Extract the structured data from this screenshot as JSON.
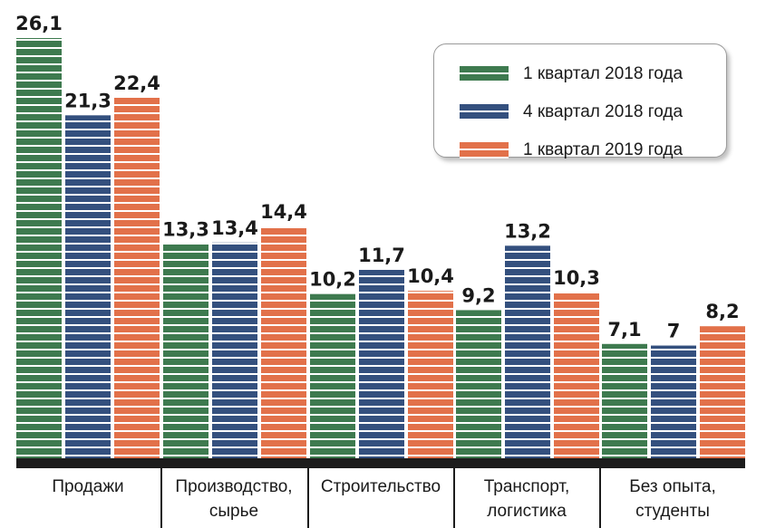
{
  "chart_data": {
    "type": "bar",
    "title": "",
    "xlabel": "",
    "ylabel": "",
    "ylim": [
      0,
      26.1
    ],
    "categories": [
      "Продажи",
      "Производство, сырье",
      "Строительство",
      "Транспорт, логистика",
      "Без опыта, студенты"
    ],
    "category_lines": [
      [
        "Продажи"
      ],
      [
        "Производство,",
        "сырье"
      ],
      [
        "Строительство"
      ],
      [
        "Транспорт,",
        "логистика"
      ],
      [
        "Без опыта,",
        "студенты"
      ]
    ],
    "series": [
      {
        "name": "1 квартал 2018 года",
        "color": "#3e7a4f",
        "values": [
          26.1,
          13.3,
          10.2,
          9.2,
          7.1
        ],
        "labels": [
          "26,1",
          "13,3",
          "10,2",
          "9,2",
          "7,1"
        ]
      },
      {
        "name": "4 квартал 2018 года",
        "color": "#34507e",
        "values": [
          21.3,
          13.4,
          11.7,
          13.2,
          7
        ],
        "labels": [
          "21,3",
          "13,4",
          "11,7",
          "13,2",
          "7"
        ]
      },
      {
        "name": "1 квартал 2019 года",
        "color": "#e2714a",
        "values": [
          22.4,
          14.4,
          10.4,
          10.3,
          8.2
        ],
        "labels": [
          "22,4",
          "14,4",
          "10,4",
          "10,3",
          "8,2"
        ]
      }
    ],
    "legend_position": "top-right",
    "grid": false
  }
}
